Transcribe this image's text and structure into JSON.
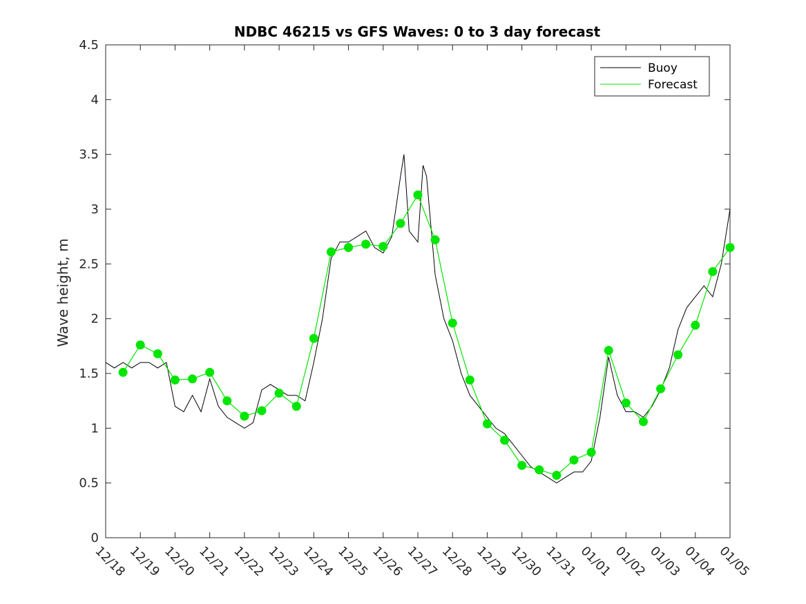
{
  "colors": {
    "buoy": "#000000",
    "forecast": "#00e600",
    "axes": "#262626"
  },
  "chart_data": {
    "type": "line",
    "title": "NDBC 46215 vs GFS Waves: 0 to 3 day forecast",
    "xlabel": "",
    "ylabel": "Wave height, m",
    "xlim": [
      0,
      18
    ],
    "ylim": [
      0,
      4.5
    ],
    "x_tick_values": [
      0,
      1,
      2,
      3,
      4,
      5,
      6,
      7,
      8,
      9,
      10,
      11,
      12,
      13,
      14,
      15,
      16,
      17,
      18
    ],
    "x_tick_labels": [
      "12/18",
      "12/19",
      "12/20",
      "12/21",
      "12/22",
      "12/23",
      "12/24",
      "12/25",
      "12/26",
      "12/27",
      "12/28",
      "12/29",
      "12/30",
      "12/31",
      "01/01",
      "01/02",
      "01/03",
      "01/04",
      "01/05"
    ],
    "y_tick_values": [
      0,
      0.5,
      1,
      1.5,
      2,
      2.5,
      3,
      3.5,
      4,
      4.5
    ],
    "y_tick_labels": [
      "0",
      "0.5",
      "1",
      "1.5",
      "2",
      "2.5",
      "3",
      "3.5",
      "4",
      "4.5"
    ],
    "grid": false,
    "legend": {
      "position": "top-right",
      "entries": [
        "Buoy",
        "Forecast"
      ]
    },
    "series": [
      {
        "name": "Buoy",
        "style": "line",
        "x": [
          0,
          0.25,
          0.5,
          0.75,
          1,
          1.25,
          1.5,
          1.75,
          2,
          2.25,
          2.5,
          2.75,
          3,
          3.25,
          3.5,
          3.75,
          4,
          4.25,
          4.5,
          4.75,
          5,
          5.25,
          5.5,
          5.75,
          6,
          6.25,
          6.5,
          6.75,
          7,
          7.25,
          7.5,
          7.75,
          8,
          8.25,
          8.5,
          8.6,
          8.75,
          9,
          9.15,
          9.25,
          9.5,
          9.75,
          10,
          10.25,
          10.5,
          10.75,
          11,
          11.25,
          11.5,
          11.75,
          12,
          12.25,
          12.5,
          12.75,
          13,
          13.25,
          13.5,
          13.75,
          14,
          14.25,
          14.5,
          14.75,
          15,
          15.25,
          15.5,
          15.75,
          16,
          16.25,
          16.5,
          16.75,
          17,
          17.25,
          17.5,
          17.75,
          18
        ],
        "values": [
          1.6,
          1.55,
          1.6,
          1.55,
          1.6,
          1.6,
          1.55,
          1.6,
          1.2,
          1.15,
          1.3,
          1.15,
          1.45,
          1.2,
          1.1,
          1.05,
          1.0,
          1.05,
          1.35,
          1.4,
          1.35,
          1.3,
          1.3,
          1.25,
          1.6,
          2.0,
          2.55,
          2.7,
          2.7,
          2.75,
          2.8,
          2.65,
          2.6,
          2.75,
          3.3,
          3.5,
          2.8,
          2.7,
          3.4,
          3.3,
          2.4,
          2.0,
          1.8,
          1.5,
          1.3,
          1.2,
          1.1,
          1.0,
          0.95,
          0.85,
          0.75,
          0.65,
          0.6,
          0.55,
          0.5,
          0.55,
          0.6,
          0.6,
          0.7,
          1.1,
          1.65,
          1.3,
          1.15,
          1.15,
          1.1,
          1.2,
          1.35,
          1.55,
          1.9,
          2.1,
          2.2,
          2.3,
          2.2,
          2.5,
          3.0
        ]
      },
      {
        "name": "Forecast",
        "style": "dots",
        "x": [
          0.5,
          1,
          1.5,
          2,
          2.5,
          3,
          3.5,
          4,
          4.5,
          5,
          5.5,
          6,
          6.5,
          7,
          7.5,
          8,
          8.5,
          9,
          9.5,
          10,
          10.5,
          11,
          11.5,
          12,
          12.5,
          13,
          13.5,
          14,
          14.5,
          15,
          15.5,
          16,
          16.5,
          17,
          17.5,
          18
        ],
        "values": [
          1.51,
          1.76,
          1.68,
          1.44,
          1.45,
          1.51,
          1.25,
          1.11,
          1.16,
          1.32,
          1.2,
          1.82,
          2.61,
          2.65,
          2.68,
          2.66,
          2.87,
          3.13,
          2.72,
          1.96,
          1.44,
          1.04,
          0.89,
          0.66,
          0.62,
          0.57,
          0.71,
          0.78,
          1.71,
          1.23,
          1.06,
          1.36,
          1.67,
          1.94,
          2.43,
          2.65
        ]
      }
    ]
  }
}
